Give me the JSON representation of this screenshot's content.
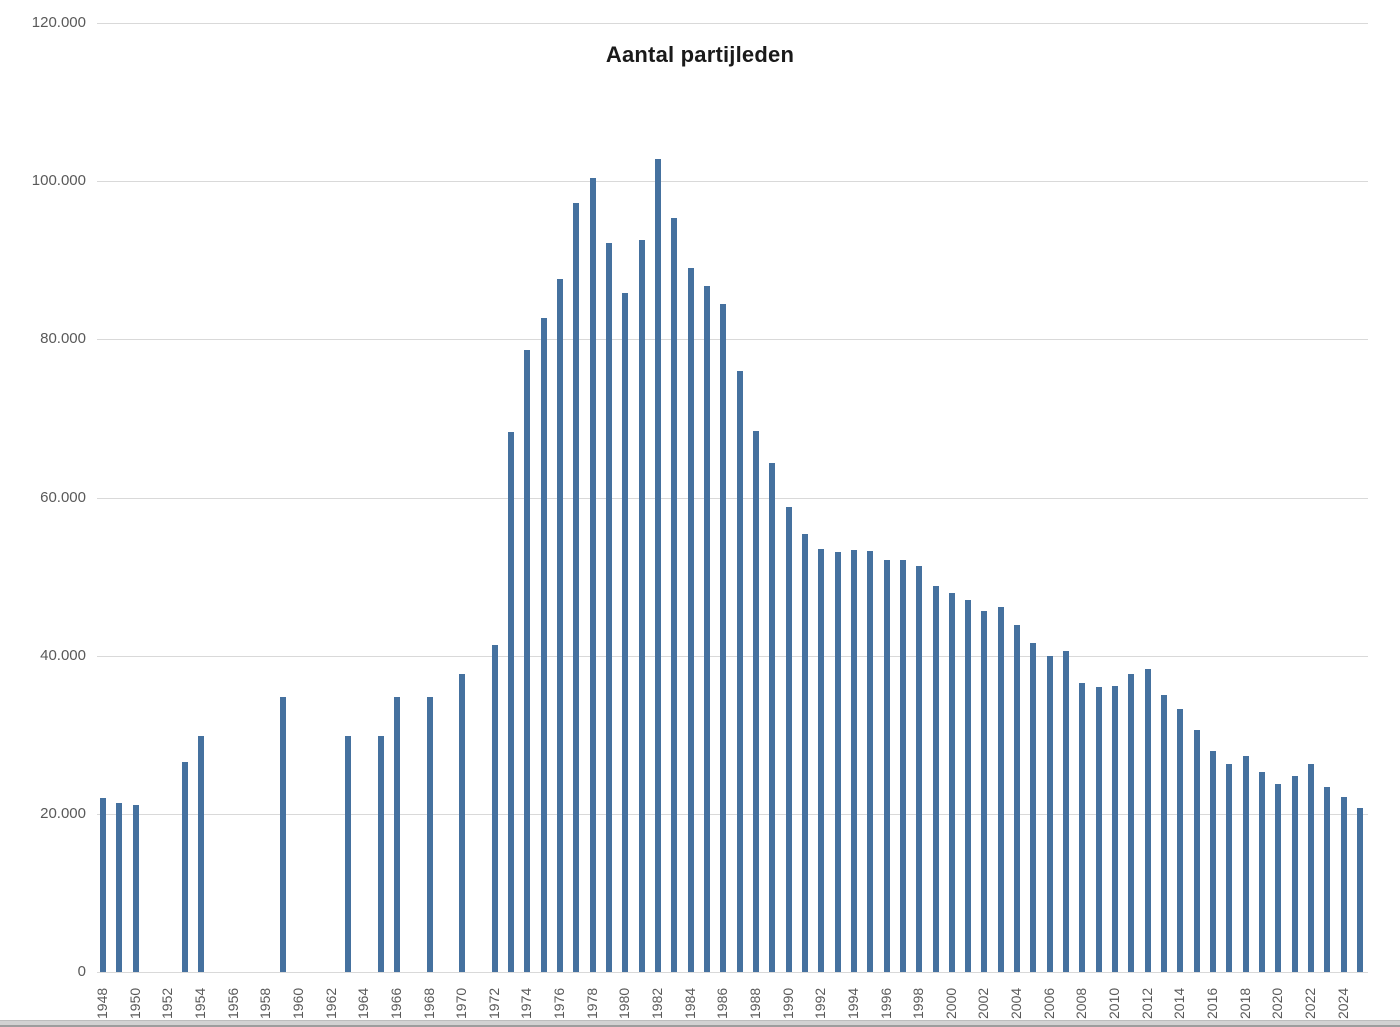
{
  "chart_data": {
    "type": "bar",
    "title": "Aantal partijleden",
    "xlabel": "",
    "ylabel": "",
    "ylim": [
      0,
      120000
    ],
    "ytick_interval": 20000,
    "ytick_labels": [
      "0",
      "20.000",
      "40.000",
      "60.000",
      "80.000",
      "100.000",
      "120.000"
    ],
    "xtick_labels": [
      "1948",
      "1950",
      "1952",
      "1954",
      "1956",
      "1958",
      "1960",
      "1962",
      "1964",
      "1966",
      "1968",
      "1970",
      "1972",
      "1974",
      "1976",
      "1978",
      "1980",
      "1982",
      "1984",
      "1986",
      "1988",
      "1990",
      "1992",
      "1994",
      "1996",
      "1998",
      "2000",
      "2002",
      "2004",
      "2006",
      "2008",
      "2010",
      "2012",
      "2014",
      "2016",
      "2018",
      "2020",
      "2022",
      "2024"
    ],
    "x_first_year": 1948,
    "x_last_year": 2025,
    "grid": true,
    "legend": "none",
    "colors": {
      "bar": "#45719f",
      "gridline": "#d9d9d9",
      "tick_label": "#595959",
      "title": "#1a1a1a"
    },
    "points": [
      [
        1948,
        22000
      ],
      [
        1949,
        21400
      ],
      [
        1950,
        21100
      ],
      [
        1953,
        26600
      ],
      [
        1954,
        29800
      ],
      [
        1959,
        34800
      ],
      [
        1963,
        29800
      ],
      [
        1965,
        29800
      ],
      [
        1966,
        34800
      ],
      [
        1968,
        34800
      ],
      [
        1970,
        37700
      ],
      [
        1972,
        41400
      ],
      [
        1973,
        68300
      ],
      [
        1974,
        78700
      ],
      [
        1975,
        82700
      ],
      [
        1976,
        87600
      ],
      [
        1977,
        97300
      ],
      [
        1978,
        100400
      ],
      [
        1979,
        92200
      ],
      [
        1980,
        85800
      ],
      [
        1981,
        92600
      ],
      [
        1982,
        102800
      ],
      [
        1983,
        95300
      ],
      [
        1984,
        89000
      ],
      [
        1985,
        86800
      ],
      [
        1986,
        84500
      ],
      [
        1987,
        76000
      ],
      [
        1988,
        68400
      ],
      [
        1989,
        64300
      ],
      [
        1990,
        58800
      ],
      [
        1991,
        55400
      ],
      [
        1992,
        53500
      ],
      [
        1993,
        53100
      ],
      [
        1994,
        53300
      ],
      [
        1995,
        53200
      ],
      [
        1996,
        52100
      ],
      [
        1997,
        52100
      ],
      [
        1998,
        51400
      ],
      [
        1999,
        48800
      ],
      [
        2000,
        47900
      ],
      [
        2001,
        47100
      ],
      [
        2002,
        45700
      ],
      [
        2003,
        46100
      ],
      [
        2004,
        43900
      ],
      [
        2005,
        41600
      ],
      [
        2006,
        39900
      ],
      [
        2007,
        40600
      ],
      [
        2008,
        36600
      ],
      [
        2009,
        36000
      ],
      [
        2010,
        36200
      ],
      [
        2011,
        37700
      ],
      [
        2012,
        38300
      ],
      [
        2013,
        35000
      ],
      [
        2014,
        33200
      ],
      [
        2015,
        30600
      ],
      [
        2016,
        28000
      ],
      [
        2017,
        26300
      ],
      [
        2018,
        27300
      ],
      [
        2019,
        25300
      ],
      [
        2020,
        23800
      ],
      [
        2021,
        24800
      ],
      [
        2022,
        26300
      ],
      [
        2023,
        23400
      ],
      [
        2024,
        22100
      ],
      [
        2025,
        20800
      ]
    ]
  }
}
